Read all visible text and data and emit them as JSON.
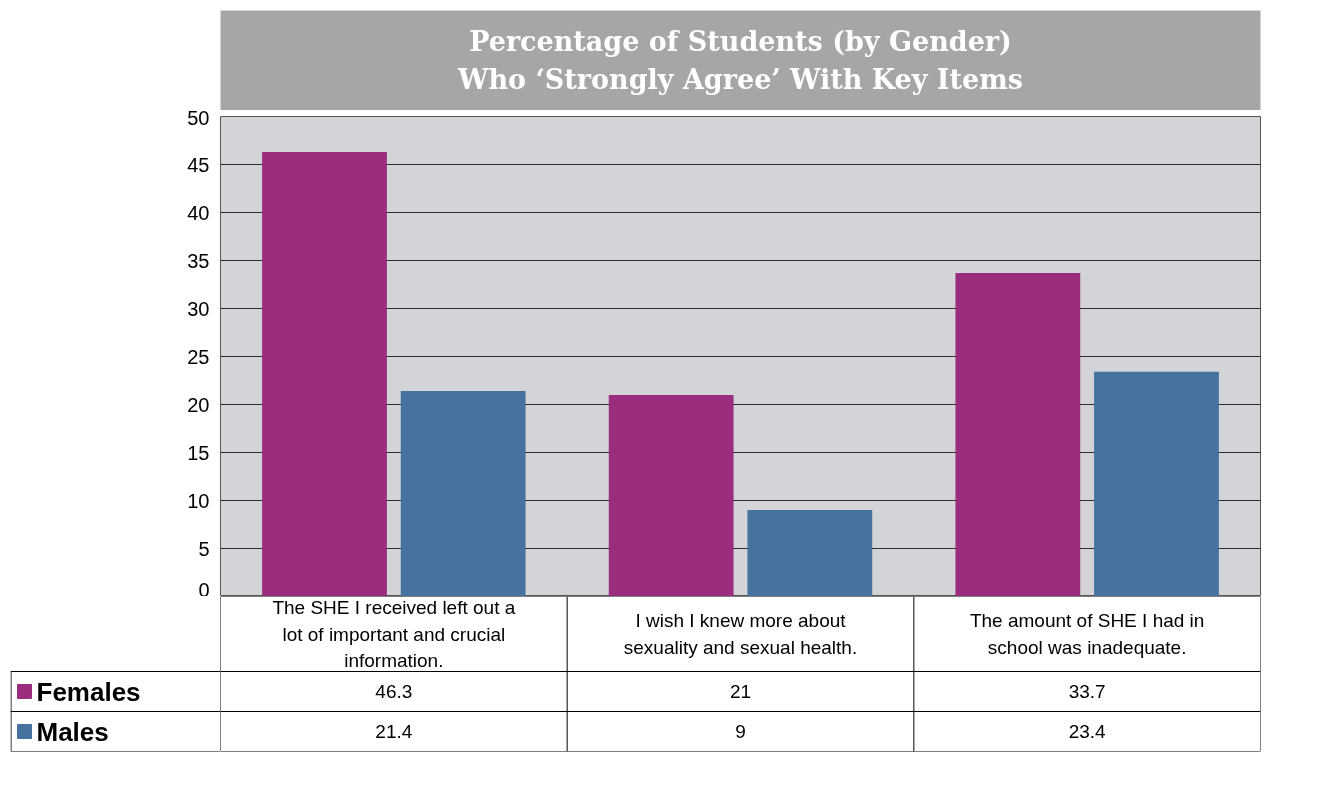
{
  "chart_data": {
    "type": "bar",
    "title": "Percentage of Students (by Gender)\nWho ‘Strongly Agree’ With Key Items",
    "categories": [
      "The SHE I received left out a lot of important and crucial information.",
      "I wish I knew more about sexuality and sexual health.",
      "The amount of SHE I had in school was inadequate."
    ],
    "series": [
      {
        "name": "Females",
        "color": "#9b2d7f",
        "values": [
          46.3,
          21,
          33.7
        ]
      },
      {
        "name": "Males",
        "color": "#46729f",
        "values": [
          21.4,
          9,
          23.4
        ]
      }
    ],
    "ylim": [
      0,
      50
    ],
    "yticks": [
      0,
      5,
      10,
      15,
      20,
      25,
      30,
      35,
      40,
      45,
      50
    ],
    "grid": "y",
    "data_labels": true,
    "legend": "bottom"
  }
}
